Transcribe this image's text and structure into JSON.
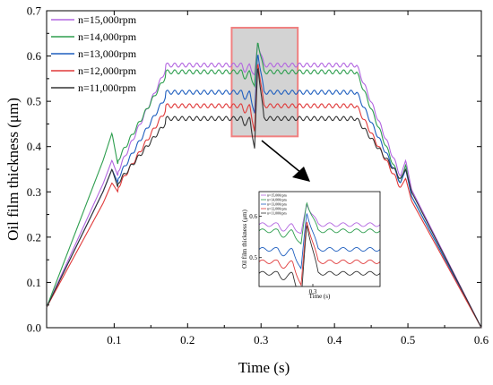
{
  "chart_data": {
    "type": "line",
    "xlabel": "Time (s)",
    "ylabel": "Oil film thickness (μm)",
    "xlim": [
      0.008,
      0.6
    ],
    "ylim": [
      0.0,
      0.7
    ],
    "x_ticks": [
      {
        "value": 0.1,
        "label": "0.1"
      },
      {
        "value": 0.2,
        "label": "0.2"
      },
      {
        "value": 0.3,
        "label": "0.3"
      },
      {
        "value": 0.4,
        "label": "0.4"
      },
      {
        "value": 0.5,
        "label": "0.5"
      },
      {
        "value": 0.6,
        "label": "0.6"
      }
    ],
    "y_ticks": [
      {
        "value": 0.0,
        "label": "0.0"
      },
      {
        "value": 0.1,
        "label": "0.1"
      },
      {
        "value": 0.2,
        "label": "0.2"
      },
      {
        "value": 0.3,
        "label": "0.3"
      },
      {
        "value": 0.4,
        "label": "0.4"
      },
      {
        "value": 0.5,
        "label": "0.5"
      },
      {
        "value": 0.6,
        "label": "0.6"
      },
      {
        "value": 0.7,
        "label": "0.7"
      }
    ],
    "legend_position": "top-left",
    "grid": false,
    "series": [
      {
        "name": "n=15,000rpm",
        "color": "#b266e0",
        "plateau": 0.58,
        "wiggle": 0.0045,
        "spike_min": -0.025,
        "spike_max": 0.05,
        "peak1": 0.37,
        "valley1": 0.335,
        "peak2": 0.37,
        "valley2": 0.335
      },
      {
        "name": "n=14,000rpm",
        "color": "#2e9e4f",
        "plateau": 0.565,
        "wiggle": 0.0045,
        "spike_min": -0.035,
        "spike_max": 0.07,
        "peak1": 0.43,
        "valley1": 0.36,
        "peak2": 0.36,
        "valley2": 0.32
      },
      {
        "name": "n=13,000rpm",
        "color": "#1f5fbf",
        "plateau": 0.52,
        "wiggle": 0.0045,
        "spike_min": -0.05,
        "spike_max": 0.09,
        "peak1": 0.35,
        "valley1": 0.32,
        "peak2": 0.35,
        "valley2": 0.32
      },
      {
        "name": "n=12,000rpm",
        "color": "#e03a3a",
        "plateau": 0.49,
        "wiggle": 0.0045,
        "spike_min": -0.06,
        "spike_max": 0.1,
        "peak1": 0.32,
        "valley1": 0.3,
        "peak2": 0.33,
        "valley2": 0.31
      },
      {
        "name": "n=11,000rpm",
        "color": "#333333",
        "plateau": 0.462,
        "wiggle": 0.0045,
        "spike_min": -0.07,
        "spike_max": 0.12,
        "peak1": 0.35,
        "valley1": 0.31,
        "peak2": 0.35,
        "valley2": 0.33
      }
    ],
    "zoom_box": {
      "x_range": [
        0.26,
        0.35
      ],
      "y_range": [
        0.4225,
        0.6625
      ],
      "fill": "#d3d3d3",
      "border": "#f08080"
    },
    "inset": {
      "xlabel": "Time (s)",
      "ylabel": "Oil film thickness (μm)",
      "xlim": [
        0.26,
        0.35
      ],
      "ylim": [
        0.43,
        0.66
      ],
      "x_ticks": [
        {
          "value": 0.3,
          "label": "0.3"
        }
      ],
      "y_ticks": [
        {
          "value": 0.5,
          "label": "0.5"
        },
        {
          "value": 0.6,
          "label": "0.6"
        }
      ]
    }
  }
}
